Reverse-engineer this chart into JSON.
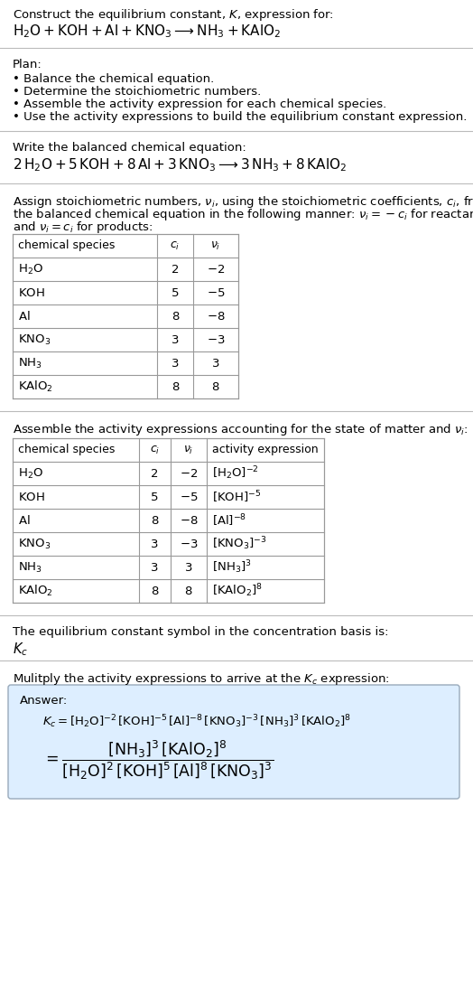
{
  "title_line1": "Construct the equilibrium constant, $K$, expression for:",
  "title_line2": "$\\mathrm{H_2O + KOH + Al + KNO_3 \\longrightarrow NH_3 + KAlO_2}$",
  "plan_header": "Plan:",
  "plan_items": [
    "• Balance the chemical equation.",
    "• Determine the stoichiometric numbers.",
    "• Assemble the activity expression for each chemical species.",
    "• Use the activity expressions to build the equilibrium constant expression."
  ],
  "balanced_header": "Write the balanced chemical equation:",
  "balanced_eq": "$2\\,\\mathrm{H_2O} + 5\\,\\mathrm{KOH} + 8\\,\\mathrm{Al} + 3\\,\\mathrm{KNO_3} \\longrightarrow 3\\,\\mathrm{NH_3} + 8\\,\\mathrm{KAlO_2}$",
  "stoich_text1": "Assign stoichiometric numbers, $\\nu_i$, using the stoichiometric coefficients, $c_i$, from",
  "stoich_text2": "the balanced chemical equation in the following manner: $\\nu_i = -c_i$ for reactants",
  "stoich_text3": "and $\\nu_i = c_i$ for products:",
  "table1_col_headers": [
    "chemical species",
    "$c_i$",
    "$\\nu_i$"
  ],
  "table1_data": [
    [
      "$\\mathrm{H_2O}$",
      "2",
      "$-2$"
    ],
    [
      "$\\mathrm{KOH}$",
      "5",
      "$-5$"
    ],
    [
      "$\\mathrm{Al}$",
      "8",
      "$-8$"
    ],
    [
      "$\\mathrm{KNO_3}$",
      "3",
      "$-3$"
    ],
    [
      "$\\mathrm{NH_3}$",
      "3",
      "$3$"
    ],
    [
      "$\\mathrm{KAlO_2}$",
      "8",
      "$8$"
    ]
  ],
  "activity_header": "Assemble the activity expressions accounting for the state of matter and $\\nu_i$:",
  "table2_col_headers": [
    "chemical species",
    "$c_i$",
    "$\\nu_i$",
    "activity expression"
  ],
  "table2_data": [
    [
      "$\\mathrm{H_2O}$",
      "2",
      "$-2$",
      "$[\\mathrm{H_2O}]^{-2}$"
    ],
    [
      "$\\mathrm{KOH}$",
      "5",
      "$-5$",
      "$[\\mathrm{KOH}]^{-5}$"
    ],
    [
      "$\\mathrm{Al}$",
      "8",
      "$-8$",
      "$[\\mathrm{Al}]^{-8}$"
    ],
    [
      "$\\mathrm{KNO_3}$",
      "3",
      "$-3$",
      "$[\\mathrm{KNO_3}]^{-3}$"
    ],
    [
      "$\\mathrm{NH_3}$",
      "3",
      "$3$",
      "$[\\mathrm{NH_3}]^{3}$"
    ],
    [
      "$\\mathrm{KAlO_2}$",
      "8",
      "$8$",
      "$[\\mathrm{KAlO_2}]^{8}$"
    ]
  ],
  "kc_header": "The equilibrium constant symbol in the concentration basis is:",
  "kc_symbol": "$K_c$",
  "multiply_header": "Mulitply the activity expressions to arrive at the $K_c$ expression:",
  "answer_label": "Answer:",
  "answer_line1": "$K_c = [\\mathrm{H_2O}]^{-2}\\,[\\mathrm{KOH}]^{-5}\\,[\\mathrm{Al}]^{-8}\\,[\\mathrm{KNO_3}]^{-3}\\,[\\mathrm{NH_3}]^{3}\\,[\\mathrm{KAlO_2}]^{8}$",
  "answer_line2": "$= \\dfrac{[\\mathrm{NH_3}]^{3}\\,[\\mathrm{KAlO_2}]^{8}}{[\\mathrm{H_2O}]^{2}\\,[\\mathrm{KOH}]^{5}\\,[\\mathrm{Al}]^{8}\\,[\\mathrm{KNO_3}]^{3}}$",
  "bg_color": "#ffffff",
  "text_color": "#000000",
  "sep_line_color": "#bbbbbb",
  "table_line_color": "#999999",
  "answer_box_bg": "#ddeeff",
  "answer_box_border": "#99aabb"
}
